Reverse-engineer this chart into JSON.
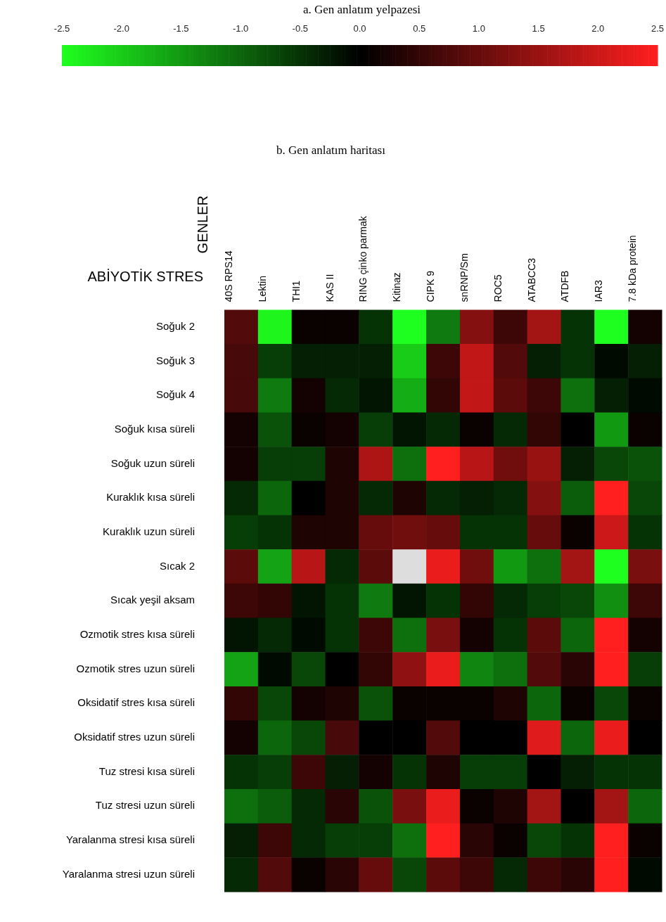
{
  "chart_data": {
    "type": "heatmap",
    "title": "b. Gen anlatım haritası",
    "clabel": "a. Gen anlatım yelpazesi",
    "annotations": [
      "GENLER"
    ],
    "ylabel": "ABİYOTİK STRES",
    "categories": [
      "40S RPS14",
      "Lektin",
      "THI1",
      "KAS II",
      "RING çinko parmak",
      "Kitinaz",
      "CIPK 9",
      "snRNP/Sm",
      "ROC5",
      "ATABCC3",
      "ATDFB",
      "IAR3",
      "7.8 kDa protein"
    ],
    "y_categories": [
      "Soğuk 2",
      "Soğuk 3",
      "Soğuk 4",
      "Soğuk kısa süreli",
      "Soğuk uzun süreli",
      "Kuraklık kısa süreli",
      "Kuraklık uzun süreli",
      "Sıcak 2",
      "Sıcak yeşil aksam",
      "Ozmotik stres kısa süreli",
      "Ozmotik stres uzun süreli",
      "Oksidatif stres kısa süreli",
      "Oksidatif stres uzun süreli",
      "Tuz stresi kısa süreli",
      "Tuz stresi uzun süreli",
      "Yaralanma stresi kısa süreli",
      "Yaralanma stresi uzun süreli"
    ],
    "cells": [
      [
        0.8,
        -2.4,
        0.1,
        0.1,
        -0.5,
        -2.5,
        -1.2,
        1.3,
        0.6,
        1.6,
        -0.5,
        -2.5,
        0.2
      ],
      [
        0.7,
        -0.6,
        -0.3,
        -0.3,
        -0.3,
        -2.0,
        0.6,
        1.9,
        0.8,
        -0.3,
        -0.5,
        -0.1,
        -0.3
      ],
      [
        0.7,
        -1.2,
        0.2,
        -0.4,
        -0.2,
        -1.7,
        0.5,
        1.9,
        0.9,
        0.6,
        -1.1,
        -0.3,
        -0.1
      ],
      [
        0.2,
        -0.8,
        0.1,
        0.2,
        -0.6,
        -0.2,
        -0.4,
        0.1,
        -0.4,
        0.5,
        0.0,
        -1.5,
        0.1
      ],
      [
        0.2,
        -0.6,
        -0.6,
        0.3,
        1.7,
        -1.1,
        2.5,
        1.8,
        1.1,
        1.5,
        -0.3,
        -0.7,
        -0.8
      ],
      [
        -0.4,
        -1.0,
        0.0,
        0.3,
        -0.4,
        0.3,
        -0.4,
        -0.3,
        -0.4,
        1.3,
        -0.9,
        2.5,
        -0.7
      ],
      [
        -0.6,
        -0.5,
        0.3,
        0.3,
        1.0,
        1.1,
        1.0,
        -0.5,
        -0.5,
        1.0,
        0.1,
        2.0,
        -0.5
      ],
      [
        0.9,
        -1.6,
        1.8,
        -0.4,
        0.9,
        null,
        2.3,
        1.1,
        -1.5,
        -1.1,
        1.6,
        -2.5,
        1.2
      ],
      [
        0.6,
        0.5,
        -0.2,
        -0.5,
        -1.2,
        -0.2,
        -0.5,
        0.5,
        -0.4,
        -0.6,
        -0.7,
        -1.4,
        0.6
      ],
      [
        -0.2,
        -0.4,
        -0.1,
        -0.5,
        0.6,
        -1.1,
        1.2,
        0.2,
        -0.5,
        0.9,
        -1.0,
        2.5,
        0.2
      ],
      [
        -1.6,
        -0.1,
        -0.7,
        0.0,
        0.5,
        1.4,
        2.3,
        -1.3,
        -1.1,
        0.8,
        0.4,
        2.5,
        -0.6
      ],
      [
        0.5,
        -0.7,
        0.2,
        0.3,
        -0.8,
        0.1,
        0.1,
        0.1,
        0.3,
        -1.0,
        0.1,
        -0.7,
        0.1
      ],
      [
        0.2,
        -1.0,
        -0.7,
        0.7,
        0.0,
        0.0,
        0.8,
        0.0,
        0.0,
        2.2,
        -1.0,
        2.3,
        0.0
      ],
      [
        -0.5,
        -0.6,
        0.6,
        -0.3,
        0.2,
        -0.5,
        0.3,
        -0.6,
        -0.6,
        0.0,
        -0.3,
        -0.5,
        -0.5
      ],
      [
        -1.1,
        -0.9,
        -0.4,
        0.4,
        -0.8,
        1.2,
        2.3,
        0.1,
        0.3,
        1.6,
        0.0,
        1.6,
        -1.0
      ],
      [
        -0.3,
        0.6,
        -0.4,
        -0.6,
        -0.6,
        -1.1,
        2.5,
        0.4,
        0.1,
        -0.7,
        -0.5,
        2.5,
        0.1
      ],
      [
        -0.4,
        0.8,
        0.1,
        0.4,
        1.0,
        -0.7,
        0.9,
        0.6,
        -0.4,
        0.6,
        0.4,
        2.5,
        -0.1
      ]
    ],
    "clim": [
      -2.5,
      2.5
    ],
    "cticks": [
      {
        "value": -2.5,
        "label": "-2.5"
      },
      {
        "value": -2,
        "label": "-2.0"
      },
      {
        "value": -1.5,
        "label": "-1.5"
      },
      {
        "value": -1,
        "label": "-1.0"
      },
      {
        "value": -0.5,
        "label": "-0.5"
      },
      {
        "value": 0,
        "label": "0.0"
      },
      {
        "value": 0.5,
        "label": "0.5"
      },
      {
        "value": 1,
        "label": "1.0"
      },
      {
        "value": 1.5,
        "label": "1.5"
      },
      {
        "value": 2,
        "label": "2.0"
      },
      {
        "value": 2.5,
        "label": "2.5"
      }
    ]
  }
}
